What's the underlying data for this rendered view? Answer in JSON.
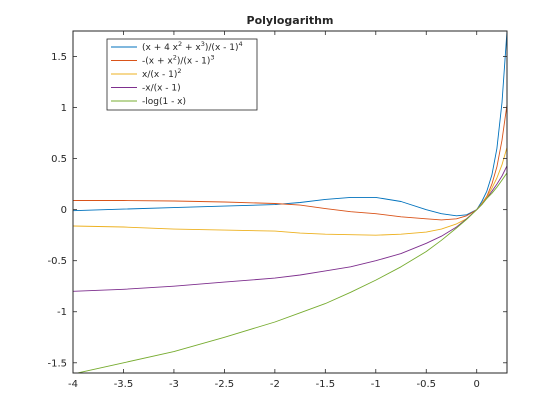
{
  "chart_data": {
    "type": "line",
    "title": "Polylogarithm",
    "xlabel": "",
    "ylabel": "",
    "xlim": [
      -4,
      0.3
    ],
    "ylim": [
      -1.6,
      1.75
    ],
    "grid": false,
    "legend_position": "top-left",
    "xticks": [
      -4,
      -3.5,
      -3,
      -2.5,
      -2,
      -1.5,
      -1,
      -0.5,
      0
    ],
    "xtick_labels": [
      "-4",
      "-3.5",
      "-3",
      "-2.5",
      "-2",
      "-1.5",
      "-1",
      "-0.5",
      "0"
    ],
    "yticks": [
      -1.5,
      -1,
      -0.5,
      0,
      0.5,
      1,
      1.5
    ],
    "ytick_labels": [
      "-1.5",
      "-1",
      "-0.5",
      "0",
      "0.5",
      "1",
      "1.5"
    ],
    "x": [
      -4,
      -3.5,
      -3,
      -2.5,
      -2,
      -1.75,
      -1.5,
      -1.25,
      -1,
      -0.75,
      -0.5,
      -0.35,
      -0.2,
      -0.1,
      0,
      0.05,
      0.1,
      0.15,
      0.2,
      0.25,
      0.3
    ],
    "series": [
      {
        "name": "(x + 4 x² + x³)/(x - 1)⁴",
        "label_parts": [
          "(x + 4 x",
          "2",
          " + x",
          "3",
          ")/(x - 1)",
          "4"
        ],
        "color": "#0072bd",
        "values": [
          -0.01,
          0.005,
          0.02,
          0.035,
          0.05,
          0.07,
          0.1,
          0.12,
          0.12,
          0.08,
          0.0,
          -0.04,
          -0.06,
          -0.05,
          0.0,
          0.08,
          0.18,
          0.34,
          0.6,
          1.05,
          1.75
        ]
      },
      {
        "name": "-(x + x²)/(x - 1)³",
        "label_parts": [
          "-(x + x",
          "2",
          ")/(x - 1)",
          "3"
        ],
        "color": "#d95319",
        "values": [
          0.09,
          0.09,
          0.085,
          0.075,
          0.06,
          0.045,
          0.01,
          -0.02,
          -0.04,
          -0.07,
          -0.09,
          -0.1,
          -0.09,
          -0.06,
          0.0,
          0.06,
          0.13,
          0.25,
          0.42,
          0.68,
          1.03
        ]
      },
      {
        "name": "x/(x - 1)²",
        "label_parts": [
          "x/(x - 1)",
          "2"
        ],
        "color": "#edb120",
        "values": [
          -0.16,
          -0.17,
          -0.19,
          -0.2,
          -0.21,
          -0.23,
          -0.24,
          -0.245,
          -0.25,
          -0.24,
          -0.22,
          -0.19,
          -0.14,
          -0.09,
          0.0,
          0.055,
          0.12,
          0.21,
          0.31,
          0.44,
          0.61
        ]
      },
      {
        "name": "-x/(x - 1)",
        "label_parts": [
          "-x/(x - 1)"
        ],
        "color": "#7e2f8e",
        "values": [
          -0.8,
          -0.78,
          -0.75,
          -0.71,
          -0.67,
          -0.64,
          -0.6,
          -0.56,
          -0.5,
          -0.43,
          -0.33,
          -0.26,
          -0.17,
          -0.09,
          0.0,
          0.05,
          0.11,
          0.18,
          0.25,
          0.33,
          0.43
        ]
      },
      {
        "name": "-log(1 - x)",
        "label_parts": [
          "-log(1 - x)"
        ],
        "color": "#77ac30",
        "values": [
          -1.61,
          -1.5,
          -1.39,
          -1.25,
          -1.1,
          -1.01,
          -0.92,
          -0.81,
          -0.69,
          -0.56,
          -0.41,
          -0.3,
          -0.18,
          -0.095,
          0.0,
          0.05,
          0.11,
          0.16,
          0.22,
          0.29,
          0.36
        ]
      }
    ]
  }
}
